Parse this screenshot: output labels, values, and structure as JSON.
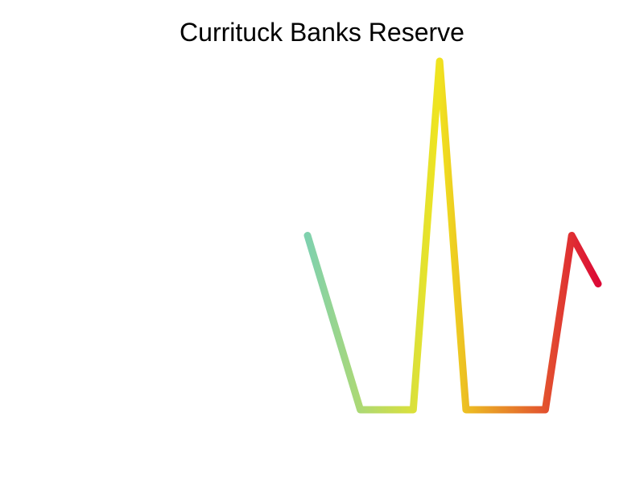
{
  "chart_data": {
    "type": "line",
    "title": "Currituck Banks Reserve",
    "xlabel": "",
    "ylabel": "",
    "x": [
      0,
      1,
      2,
      3,
      4,
      5,
      6,
      7,
      8,
      9,
      10,
      11
    ],
    "values": [
      3.6,
      1.8,
      0,
      0,
      0,
      7.2,
      0,
      0,
      0,
      0,
      3.6,
      2.6
    ],
    "xlim": [
      0,
      11
    ],
    "ylim": [
      0,
      7.2
    ],
    "grid": false,
    "legend": "none",
    "line_colors": {
      "start": "#7fd1ae",
      "mid": "#f0e41f",
      "end": "#dc0a36"
    }
  }
}
